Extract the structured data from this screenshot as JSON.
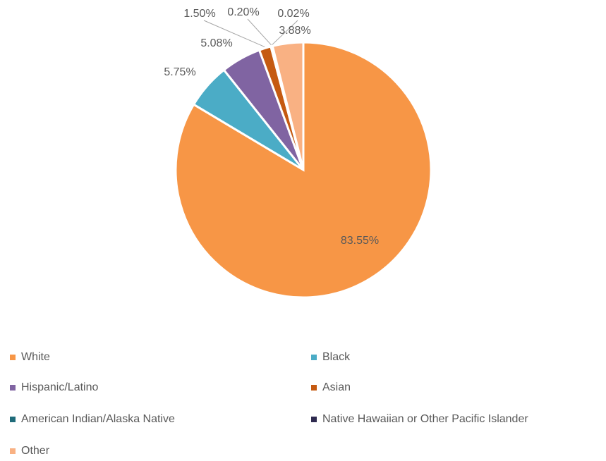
{
  "chart_data": {
    "type": "pie",
    "categories": [
      "White",
      "Black",
      "Hispanic/Latino",
      "Asian",
      "American Indian/Alaska Native",
      "Native Hawaiian or Other Pacific Islander",
      "Other"
    ],
    "values": [
      83.55,
      5.75,
      5.08,
      1.5,
      0.2,
      0.02,
      3.88
    ],
    "value_labels": [
      "83.55%",
      "5.75%",
      "5.08%",
      "1.50%",
      "0.20%",
      "0.02%",
      "3.88%"
    ],
    "colors": [
      "#f79646",
      "#4bacc6",
      "#8064a2",
      "#c55a11",
      "#1f6b7a",
      "#2e2a4f",
      "#f9b183"
    ],
    "legend": "bottom"
  }
}
